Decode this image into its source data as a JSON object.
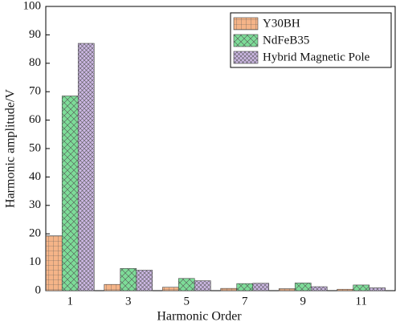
{
  "chart_data": {
    "type": "bar",
    "x_label": "Harmonic Order",
    "y_label": "Harmonic amplitude/V",
    "categories": [
      "1",
      "3",
      "5",
      "7",
      "9",
      "11"
    ],
    "series": [
      {
        "name": "Y30BH",
        "color": "#f5b488",
        "values": [
          19.3,
          2.2,
          1.2,
          0.8,
          0.7,
          0.5
        ]
      },
      {
        "name": "NdFeB35",
        "color": "#7ddc98",
        "values": [
          68.5,
          7.8,
          4.3,
          2.5,
          2.7,
          2.0
        ]
      },
      {
        "name": "Hybrid Magnetic Pole",
        "color": "#cdb8e4",
        "values": [
          87,
          7.2,
          3.5,
          2.6,
          1.4,
          1.0
        ]
      }
    ],
    "ylim": [
      0,
      100
    ],
    "yticks": [
      0,
      10,
      20,
      30,
      40,
      50,
      60,
      70,
      80,
      90,
      100
    ],
    "legend": "top-right"
  }
}
